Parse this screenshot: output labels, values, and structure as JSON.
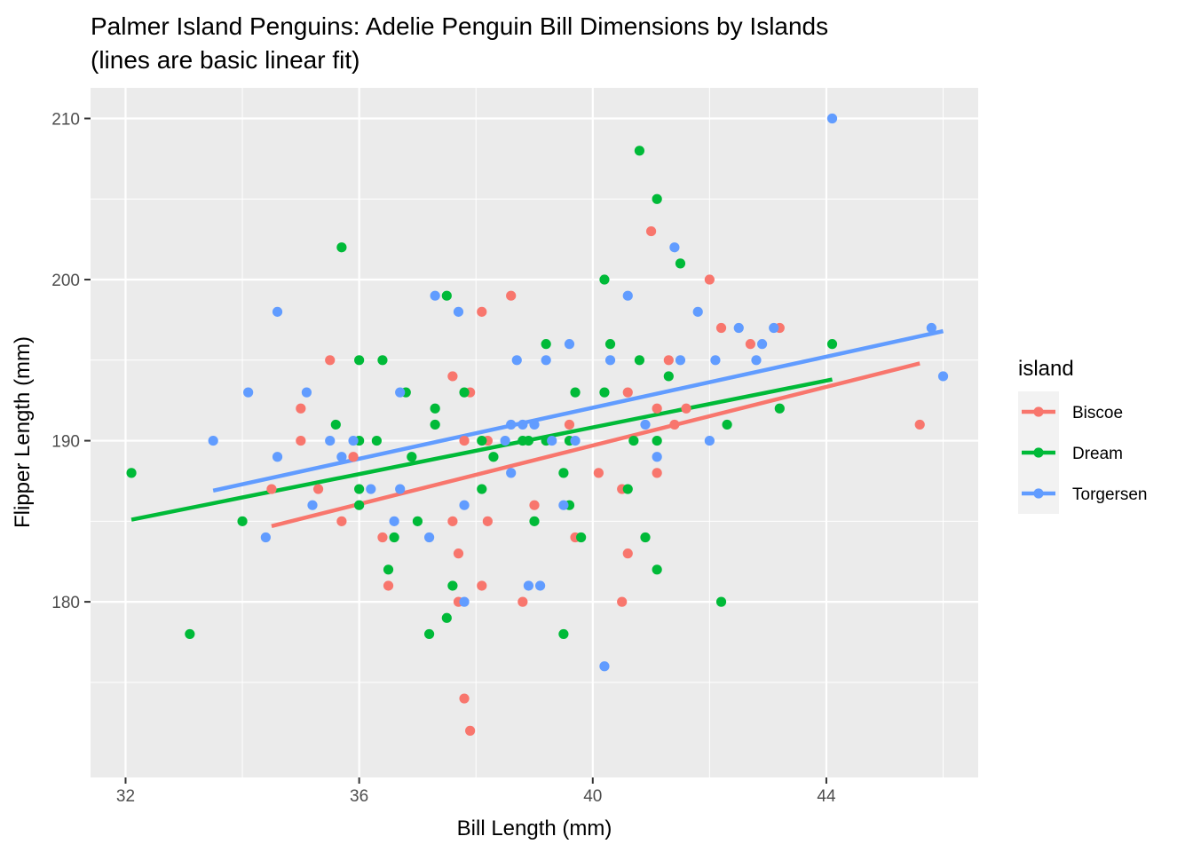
{
  "chart_data": {
    "type": "scatter",
    "title": "Palmer Island Penguins: Adelie Penguin Bill Dimensions by Islands",
    "subtitle": "(lines are basic linear fit)",
    "xlabel": "Bill Length (mm)",
    "ylabel": "Flipper Length (mm)",
    "xlim": [
      31.4,
      46.6
    ],
    "ylim": [
      169.1,
      211.9
    ],
    "x_ticks": [
      32,
      36,
      40,
      44
    ],
    "y_ticks": [
      180,
      190,
      200,
      210
    ],
    "grid": true,
    "legend": {
      "title": "island",
      "position": "right"
    },
    "series": [
      {
        "name": "Biscoe",
        "color": "#F8766D",
        "points": [
          [
            34.5,
            187
          ],
          [
            35.0,
            192
          ],
          [
            35.0,
            190
          ],
          [
            35.3,
            187
          ],
          [
            35.5,
            195
          ],
          [
            35.7,
            185
          ],
          [
            35.9,
            189
          ],
          [
            36.4,
            184
          ],
          [
            36.5,
            181
          ],
          [
            37.6,
            194
          ],
          [
            37.6,
            185
          ],
          [
            37.7,
            183
          ],
          [
            37.7,
            180
          ],
          [
            37.8,
            190
          ],
          [
            37.8,
            174
          ],
          [
            37.9,
            193
          ],
          [
            37.9,
            172
          ],
          [
            38.1,
            198
          ],
          [
            38.1,
            181
          ],
          [
            38.2,
            190
          ],
          [
            38.2,
            185
          ],
          [
            38.6,
            199
          ],
          [
            38.8,
            180
          ],
          [
            39.0,
            186
          ],
          [
            39.6,
            191
          ],
          [
            39.7,
            184
          ],
          [
            40.1,
            188
          ],
          [
            40.5,
            187
          ],
          [
            40.5,
            180
          ],
          [
            40.6,
            193
          ],
          [
            40.6,
            183
          ],
          [
            41.0,
            203
          ],
          [
            41.1,
            192
          ],
          [
            41.1,
            188
          ],
          [
            41.3,
            195
          ],
          [
            41.4,
            191
          ],
          [
            41.6,
            192
          ],
          [
            42.0,
            200
          ],
          [
            42.2,
            197
          ],
          [
            42.7,
            196
          ],
          [
            43.2,
            197
          ],
          [
            45.6,
            191
          ]
        ],
        "fit": [
          [
            34.5,
            184.7
          ],
          [
            45.6,
            194.8
          ]
        ]
      },
      {
        "name": "Dream",
        "color": "#00BA38",
        "points": [
          [
            32.1,
            188
          ],
          [
            33.1,
            178
          ],
          [
            34.0,
            185
          ],
          [
            35.6,
            191
          ],
          [
            35.7,
            202
          ],
          [
            36.0,
            195
          ],
          [
            36.0,
            190
          ],
          [
            36.0,
            187
          ],
          [
            36.0,
            186
          ],
          [
            36.3,
            190
          ],
          [
            36.4,
            195
          ],
          [
            36.5,
            182
          ],
          [
            36.6,
            184
          ],
          [
            36.8,
            193
          ],
          [
            36.9,
            189
          ],
          [
            37.0,
            185
          ],
          [
            37.2,
            178
          ],
          [
            37.3,
            192
          ],
          [
            37.3,
            191
          ],
          [
            37.5,
            199
          ],
          [
            37.5,
            179
          ],
          [
            37.6,
            181
          ],
          [
            37.8,
            193
          ],
          [
            38.1,
            190
          ],
          [
            38.1,
            187
          ],
          [
            38.3,
            189
          ],
          [
            38.8,
            190
          ],
          [
            38.9,
            190
          ],
          [
            39.0,
            185
          ],
          [
            39.2,
            196
          ],
          [
            39.2,
            190
          ],
          [
            39.5,
            188
          ],
          [
            39.5,
            178
          ],
          [
            39.6,
            186
          ],
          [
            39.6,
            190
          ],
          [
            39.7,
            193
          ],
          [
            39.8,
            184
          ],
          [
            40.2,
            200
          ],
          [
            40.2,
            193
          ],
          [
            40.3,
            196
          ],
          [
            40.6,
            187
          ],
          [
            40.7,
            190
          ],
          [
            40.8,
            208
          ],
          [
            40.8,
            195
          ],
          [
            40.9,
            184
          ],
          [
            41.1,
            205
          ],
          [
            41.1,
            190
          ],
          [
            41.1,
            182
          ],
          [
            41.3,
            194
          ],
          [
            41.5,
            201
          ],
          [
            42.2,
            180
          ],
          [
            42.3,
            191
          ],
          [
            43.2,
            192
          ],
          [
            44.1,
            196
          ]
        ],
        "fit": [
          [
            32.1,
            185.1
          ],
          [
            44.1,
            193.8
          ]
        ]
      },
      {
        "name": "Torgersen",
        "color": "#619CFF",
        "points": [
          [
            33.5,
            190
          ],
          [
            34.1,
            193
          ],
          [
            34.4,
            184
          ],
          [
            34.6,
            198
          ],
          [
            34.6,
            189
          ],
          [
            35.1,
            193
          ],
          [
            35.2,
            186
          ],
          [
            35.5,
            190
          ],
          [
            35.7,
            189
          ],
          [
            35.9,
            190
          ],
          [
            36.2,
            187
          ],
          [
            36.6,
            185
          ],
          [
            36.7,
            193
          ],
          [
            36.7,
            187
          ],
          [
            37.2,
            184
          ],
          [
            37.3,
            199
          ],
          [
            37.7,
            198
          ],
          [
            37.8,
            186
          ],
          [
            37.8,
            180
          ],
          [
            38.5,
            190
          ],
          [
            38.6,
            191
          ],
          [
            38.6,
            188
          ],
          [
            38.7,
            195
          ],
          [
            38.8,
            191
          ],
          [
            38.9,
            181
          ],
          [
            39.0,
            191
          ],
          [
            39.1,
            181
          ],
          [
            39.2,
            195
          ],
          [
            39.3,
            190
          ],
          [
            39.5,
            186
          ],
          [
            39.6,
            196
          ],
          [
            39.7,
            190
          ],
          [
            40.2,
            176
          ],
          [
            40.3,
            195
          ],
          [
            40.6,
            199
          ],
          [
            40.9,
            191
          ],
          [
            41.1,
            189
          ],
          [
            41.4,
            202
          ],
          [
            41.5,
            195
          ],
          [
            41.8,
            198
          ],
          [
            42.0,
            190
          ],
          [
            42.1,
            195
          ],
          [
            42.5,
            197
          ],
          [
            42.8,
            195
          ],
          [
            42.9,
            196
          ],
          [
            43.1,
            197
          ],
          [
            44.1,
            210
          ],
          [
            45.8,
            197
          ],
          [
            46.0,
            194
          ]
        ],
        "fit": [
          [
            33.5,
            186.9
          ],
          [
            46.0,
            196.8
          ]
        ]
      }
    ]
  }
}
